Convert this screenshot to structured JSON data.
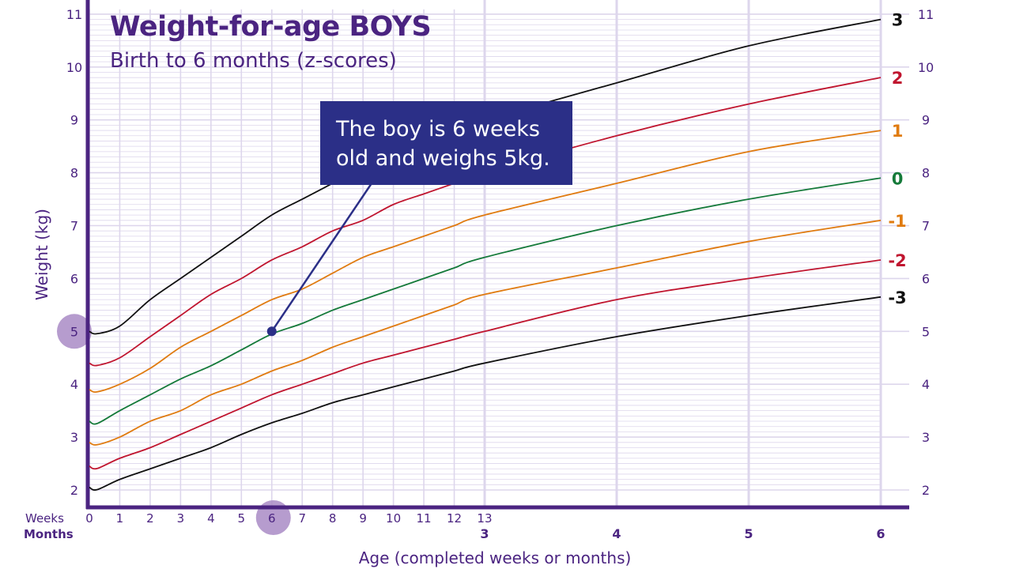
{
  "chart_data": {
    "type": "line",
    "title": "Weight-for-age BOYS",
    "subtitle": "Birth to 6 months (z-scores)",
    "ylabel": "Weight (kg)",
    "xlabel": "Age (completed weeks or months)",
    "x_row_labels": {
      "weeks": "Weeks",
      "months": "Months"
    },
    "ylim": [
      2,
      11
    ],
    "yticks": [
      2,
      3,
      4,
      5,
      6,
      7,
      8,
      9,
      10,
      11
    ],
    "week_ticks": [
      0,
      1,
      2,
      3,
      4,
      5,
      6,
      7,
      8,
      9,
      10,
      11,
      12,
      13
    ],
    "month_ticks": [
      3,
      4,
      5,
      6
    ],
    "grid": true,
    "x_weeks": [
      0,
      1,
      2,
      3,
      4,
      5,
      6,
      7,
      8,
      9,
      10,
      11,
      12,
      13
    ],
    "x_months_after": [
      4,
      5,
      6
    ],
    "series": [
      {
        "name": "3",
        "color": "#111111",
        "weeks": [
          5.0,
          5.1,
          5.6,
          6.0,
          6.4,
          6.8,
          7.2,
          7.5,
          7.8,
          8.1,
          8.3,
          8.6,
          8.8,
          9.0
        ],
        "months": [
          9.7,
          10.4,
          10.9
        ]
      },
      {
        "name": "2",
        "color": "#c0152f",
        "weeks": [
          4.4,
          4.5,
          4.9,
          5.3,
          5.7,
          6.0,
          6.35,
          6.6,
          6.9,
          7.1,
          7.4,
          7.6,
          7.8,
          8.0
        ],
        "months": [
          8.7,
          9.3,
          9.8
        ]
      },
      {
        "name": "1",
        "color": "#e07b10",
        "weeks": [
          3.9,
          4.0,
          4.3,
          4.7,
          5.0,
          5.3,
          5.6,
          5.8,
          6.1,
          6.4,
          6.6,
          6.8,
          7.0,
          7.2
        ],
        "months": [
          7.8,
          8.4,
          8.8
        ]
      },
      {
        "name": "0",
        "color": "#157a3a",
        "weeks": [
          3.3,
          3.5,
          3.8,
          4.1,
          4.35,
          4.65,
          4.95,
          5.15,
          5.4,
          5.6,
          5.8,
          6.0,
          6.2,
          6.4
        ],
        "months": [
          7.0,
          7.5,
          7.9
        ]
      },
      {
        "name": "-1",
        "color": "#e07b10",
        "weeks": [
          2.9,
          3.0,
          3.3,
          3.5,
          3.8,
          4.0,
          4.25,
          4.45,
          4.7,
          4.9,
          5.1,
          5.3,
          5.5,
          5.7
        ],
        "months": [
          6.2,
          6.7,
          7.1
        ]
      },
      {
        "name": "-2",
        "color": "#c0152f",
        "weeks": [
          2.45,
          2.6,
          2.8,
          3.05,
          3.3,
          3.55,
          3.8,
          4.0,
          4.2,
          4.4,
          4.55,
          4.7,
          4.85,
          5.0
        ],
        "months": [
          5.6,
          6.0,
          6.35
        ]
      },
      {
        "name": "-3",
        "color": "#111111",
        "weeks": [
          2.05,
          2.2,
          2.4,
          2.6,
          2.8,
          3.05,
          3.27,
          3.45,
          3.65,
          3.8,
          3.95,
          4.1,
          4.25,
          4.4
        ],
        "months": [
          4.9,
          5.3,
          5.65
        ]
      }
    ],
    "annotation": {
      "text_line1": "The boy is 6 weeks",
      "text_line2": "old and weighs 5kg.",
      "point": {
        "week": 6,
        "weight": 5
      }
    },
    "highlighted_ticks": {
      "week": 6,
      "weight": 5
    }
  },
  "colors": {
    "axis": "#4b2481",
    "grid": "#ddd6ec",
    "callout": "#2b2f87",
    "highlight": "#a98bc6",
    "point": "#2b2f87"
  }
}
